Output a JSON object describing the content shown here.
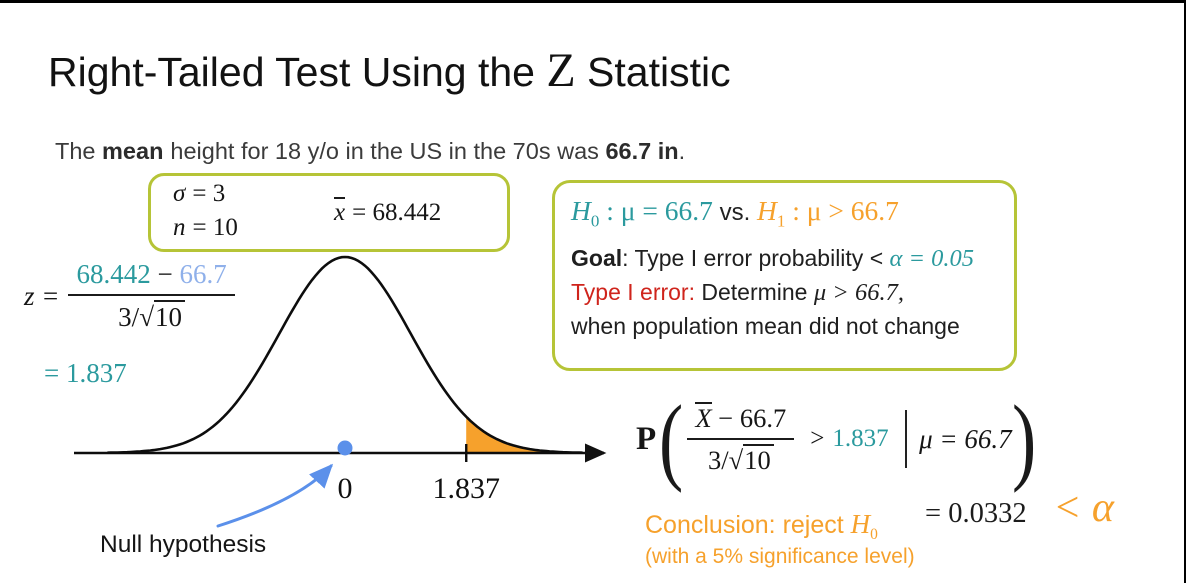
{
  "colors": {
    "teal": "#2b9a9e",
    "orange": "#f6a12c",
    "red": "#cf241c",
    "blue": "#5b90ea",
    "lightblue": "#8fb0ea",
    "olive": "#b6c437",
    "ink": "#141414"
  },
  "title": {
    "part1": "Right-Tailed Test Using the ",
    "z": "Z",
    "part2": " Statistic"
  },
  "subtitle": {
    "t1": "The ",
    "b1": "mean",
    "t2": "height for 18 y/o in the US in the 70s was ",
    "b2": "66.7 in",
    "t3": "."
  },
  "param_box": {
    "sigma_var": "σ",
    "sigma_val": "= 3",
    "n_var": "n",
    "n_val": "= 10",
    "xbar_var": "x",
    "xbar_val": "= 68.442"
  },
  "z_formula": {
    "lhs": "z =",
    "num_a": "68.442",
    "minus": " − ",
    "num_b": "66.7",
    "den_pre": "3/",
    "den_rad": "√",
    "den_radicand": "10",
    "result": "= 1.837"
  },
  "curve_labels": {
    "zero": "0",
    "critical": "1.837",
    "null_hypothesis": "Null hypothesis"
  },
  "chart_data": {
    "type": "area",
    "title": "Standard normal density under the null hypothesis",
    "curve": "standard normal density",
    "mean": 0,
    "sd": 1,
    "x_range": [
      -3.6,
      3.6
    ],
    "x_ticks": [
      0,
      1.837
    ],
    "critical_value": 1.837,
    "shaded_region": "x > 1.837",
    "shaded_area": 0.0332,
    "shade_color": "#f6a12c",
    "annotation": "Null hypothesis arrow points to blue dot at x = 0"
  },
  "hypothesis_box": {
    "h0_h": "H",
    "h0_sub": "0",
    "h0_rest": " : μ = 66.7",
    "vs": " vs. ",
    "h1_h": "H",
    "h1_sub": "1",
    "h1_rest": " : μ > 66.7",
    "goal_label": "Goal",
    "goal_mid": ": Type I error probability < ",
    "goal_math": "α = 0.05",
    "type1_label": "Type I error:",
    "type1_mid": " Determine ",
    "type1_math": "μ > 66.7,",
    "line4": "when population mean did not change"
  },
  "prob_expr": {
    "p": "P",
    "open_paren": "(",
    "num_x": "X",
    "num_rest": " − 66.7",
    "den_pre": "3/",
    "den_rad": "√",
    "den_radicand": "10",
    "gt": ">",
    "critical": "1.837",
    "condition": "μ = 66.7",
    "close_paren": ")"
  },
  "conclusion": {
    "equals_value": "= 0.0332",
    "lt_alpha": "< α",
    "reject_pre": "Conclusion: reject ",
    "reject_h": "H",
    "reject_sub": "0",
    "note": "(with a 5% significance level)"
  }
}
